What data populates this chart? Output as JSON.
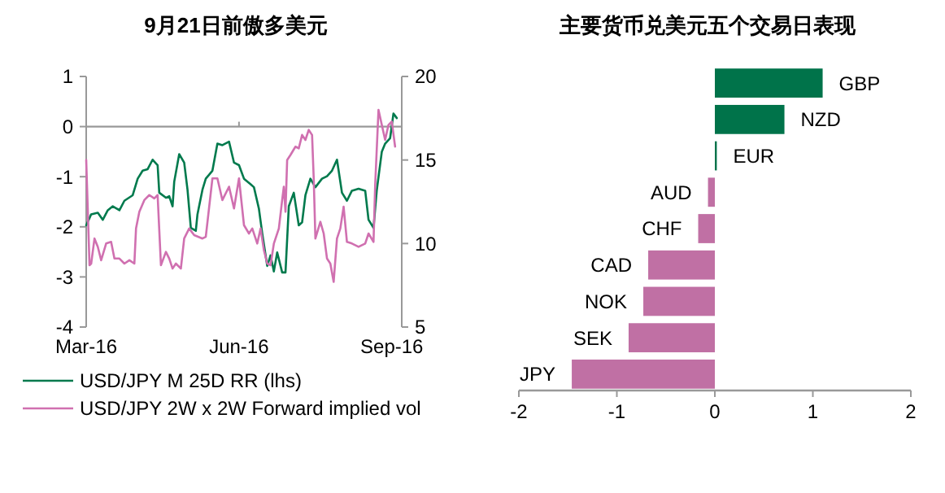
{
  "chart_data": [
    {
      "type": "line",
      "title": "9月21日前傲多美元",
      "xlim": [
        "2016-03-01",
        "2016-09-07"
      ],
      "xticks": [
        {
          "value": "2016-03-01",
          "label": "Mar-16"
        },
        {
          "value": "2016-06-01",
          "label": "Jun-16"
        },
        {
          "value": "2016-09-01",
          "label": "Sep-16"
        }
      ],
      "ylim": [
        -4,
        1
      ],
      "yticks": [
        -4,
        -3,
        -2,
        -1,
        0,
        1
      ],
      "y2lim": [
        5,
        20
      ],
      "y2ticks": [
        5,
        10,
        15,
        20
      ],
      "ref_lines": [
        {
          "axis": "y",
          "value": 0,
          "color": "#999999"
        }
      ],
      "legend": "bottom",
      "series": [
        {
          "name": "USD/JPY M 25D RR (lhs)",
          "color": "#007a4d",
          "x": [
            "2016-03-01",
            "2016-03-04",
            "2016-03-08",
            "2016-03-11",
            "2016-03-14",
            "2016-03-17",
            "2016-03-21",
            "2016-03-24",
            "2016-03-29",
            "2016-04-01",
            "2016-04-04",
            "2016-04-07",
            "2016-04-10",
            "2016-04-13",
            "2016-04-14",
            "2016-04-18",
            "2016-04-20",
            "2016-04-22",
            "2016-04-23",
            "2016-04-26",
            "2016-04-29",
            "2016-05-01",
            "2016-05-03",
            "2016-05-06",
            "2016-05-07",
            "2016-05-10",
            "2016-05-12",
            "2016-05-16",
            "2016-05-19",
            "2016-05-22",
            "2016-05-26",
            "2016-05-29",
            "2016-06-01",
            "2016-06-04",
            "2016-06-08",
            "2016-06-10",
            "2016-06-13",
            "2016-06-15",
            "2016-06-18",
            "2016-06-20",
            "2016-06-22",
            "2016-06-24",
            "2016-06-27",
            "2016-06-29",
            "2016-07-01",
            "2016-07-04",
            "2016-07-07",
            "2016-07-09",
            "2016-07-11",
            "2016-07-14",
            "2016-07-17",
            "2016-07-21",
            "2016-07-24",
            "2016-07-27",
            "2016-07-30",
            "2016-08-02",
            "2016-08-05",
            "2016-08-08",
            "2016-08-12",
            "2016-08-16",
            "2016-08-18",
            "2016-08-21",
            "2016-08-23",
            "2016-08-26",
            "2016-08-28",
            "2016-08-31",
            "2016-09-02",
            "2016-09-04"
          ],
          "values": [
            -1.97,
            -1.75,
            -1.72,
            -1.86,
            -1.67,
            -1.59,
            -1.67,
            -1.48,
            -1.37,
            -1.04,
            -0.88,
            -0.85,
            -0.66,
            -0.77,
            -1.32,
            -1.42,
            -1.39,
            -1.59,
            -1.1,
            -0.55,
            -0.72,
            -1.26,
            -2.02,
            -2.08,
            -1.75,
            -1.26,
            -1.04,
            -0.88,
            -0.34,
            -0.37,
            -0.3,
            -0.72,
            -0.77,
            -1.04,
            -1.15,
            -1.21,
            -1.64,
            -2.13,
            -2.78,
            -2.57,
            -2.89,
            -2.51,
            -2.91,
            -2.91,
            -1.59,
            -1.32,
            -1.97,
            -1.91,
            -1.37,
            -1.04,
            -1.21,
            -1.04,
            -0.99,
            -0.88,
            -0.66,
            -1.32,
            -1.48,
            -1.28,
            -1.24,
            -1.28,
            -1.86,
            -2.02,
            -1.26,
            -0.5,
            -0.34,
            -0.23,
            0.26,
            0.17
          ]
        },
        {
          "name": "USD/JPY 2W x 2W Forward implied vol",
          "color": "#d070b0",
          "axis": "y2",
          "x": [
            "2016-03-01",
            "2016-03-03",
            "2016-03-04",
            "2016-03-06",
            "2016-03-08",
            "2016-03-10",
            "2016-03-13",
            "2016-03-16",
            "2016-03-18",
            "2016-03-21",
            "2016-03-24",
            "2016-03-27",
            "2016-03-30",
            "2016-03-31",
            "2016-04-02",
            "2016-04-05",
            "2016-04-08",
            "2016-04-11",
            "2016-04-13",
            "2016-04-15",
            "2016-04-18",
            "2016-04-20",
            "2016-04-22",
            "2016-04-24",
            "2016-04-27",
            "2016-04-29",
            "2016-05-02",
            "2016-05-05",
            "2016-05-10",
            "2016-05-12",
            "2016-05-16",
            "2016-05-19",
            "2016-05-22",
            "2016-05-26",
            "2016-05-29",
            "2016-06-01",
            "2016-06-04",
            "2016-06-07",
            "2016-06-09",
            "2016-06-12",
            "2016-06-14",
            "2016-06-16",
            "2016-06-18",
            "2016-06-20",
            "2016-06-22",
            "2016-06-25",
            "2016-06-27",
            "2016-06-28",
            "2016-06-29",
            "2016-06-30",
            "2016-07-02",
            "2016-07-05",
            "2016-07-07",
            "2016-07-09",
            "2016-07-11",
            "2016-07-13",
            "2016-07-15",
            "2016-07-16",
            "2016-07-17",
            "2016-07-20",
            "2016-07-22",
            "2016-07-24",
            "2016-07-26",
            "2016-07-28",
            "2016-07-30",
            "2016-08-01",
            "2016-08-03",
            "2016-08-05",
            "2016-08-08",
            "2016-08-12",
            "2016-08-16",
            "2016-08-18",
            "2016-08-21",
            "2016-08-22",
            "2016-08-24",
            "2016-08-26",
            "2016-08-28",
            "2016-08-30",
            "2016-09-01",
            "2016-09-03"
          ],
          "values": [
            15,
            8.7,
            8.8,
            10.3,
            9.8,
            9,
            10,
            10.1,
            9.1,
            9.1,
            8.8,
            9,
            8.8,
            10.9,
            11.9,
            12.6,
            12.9,
            12.7,
            12.9,
            8.7,
            9.5,
            9.1,
            8.5,
            8.8,
            8.5,
            10.3,
            10.9,
            10.5,
            10.3,
            10.4,
            13.9,
            13.9,
            12.6,
            13.4,
            12.1,
            13.9,
            11.1,
            10.6,
            10.9,
            10,
            10.9,
            9.6,
            8.8,
            8.7,
            10,
            10.9,
            12.6,
            13.4,
            11.9,
            15,
            15.3,
            15.8,
            15.7,
            16.5,
            16.2,
            16.8,
            16.5,
            13.9,
            10.3,
            11.3,
            10.6,
            9.1,
            8.8,
            7.7,
            10.3,
            10.9,
            12.2,
            10.1,
            10,
            9.8,
            10,
            10.6,
            10.1,
            13.5,
            18,
            17.1,
            16.2,
            17.1,
            17.3,
            15.8
          ]
        }
      ]
    },
    {
      "type": "bar",
      "orientation": "horizontal",
      "title": "主要货币兑美元五个交易日表现",
      "categories": [
        "GBP",
        "NZD",
        "EUR",
        "AUD",
        "CHF",
        "CAD",
        "NOK",
        "SEK",
        "JPY"
      ],
      "values": [
        1.1,
        0.71,
        0.02,
        -0.07,
        -0.17,
        -0.68,
        -0.73,
        -0.88,
        -1.46
      ],
      "colors": [
        "#00734a",
        "#00734a",
        "#00734a",
        "#c070a4",
        "#c070a4",
        "#c070a4",
        "#c070a4",
        "#c070a4",
        "#c070a4"
      ],
      "xlim": [
        -2,
        2
      ],
      "xticks": [
        -2,
        -1,
        0,
        1,
        2
      ]
    }
  ]
}
